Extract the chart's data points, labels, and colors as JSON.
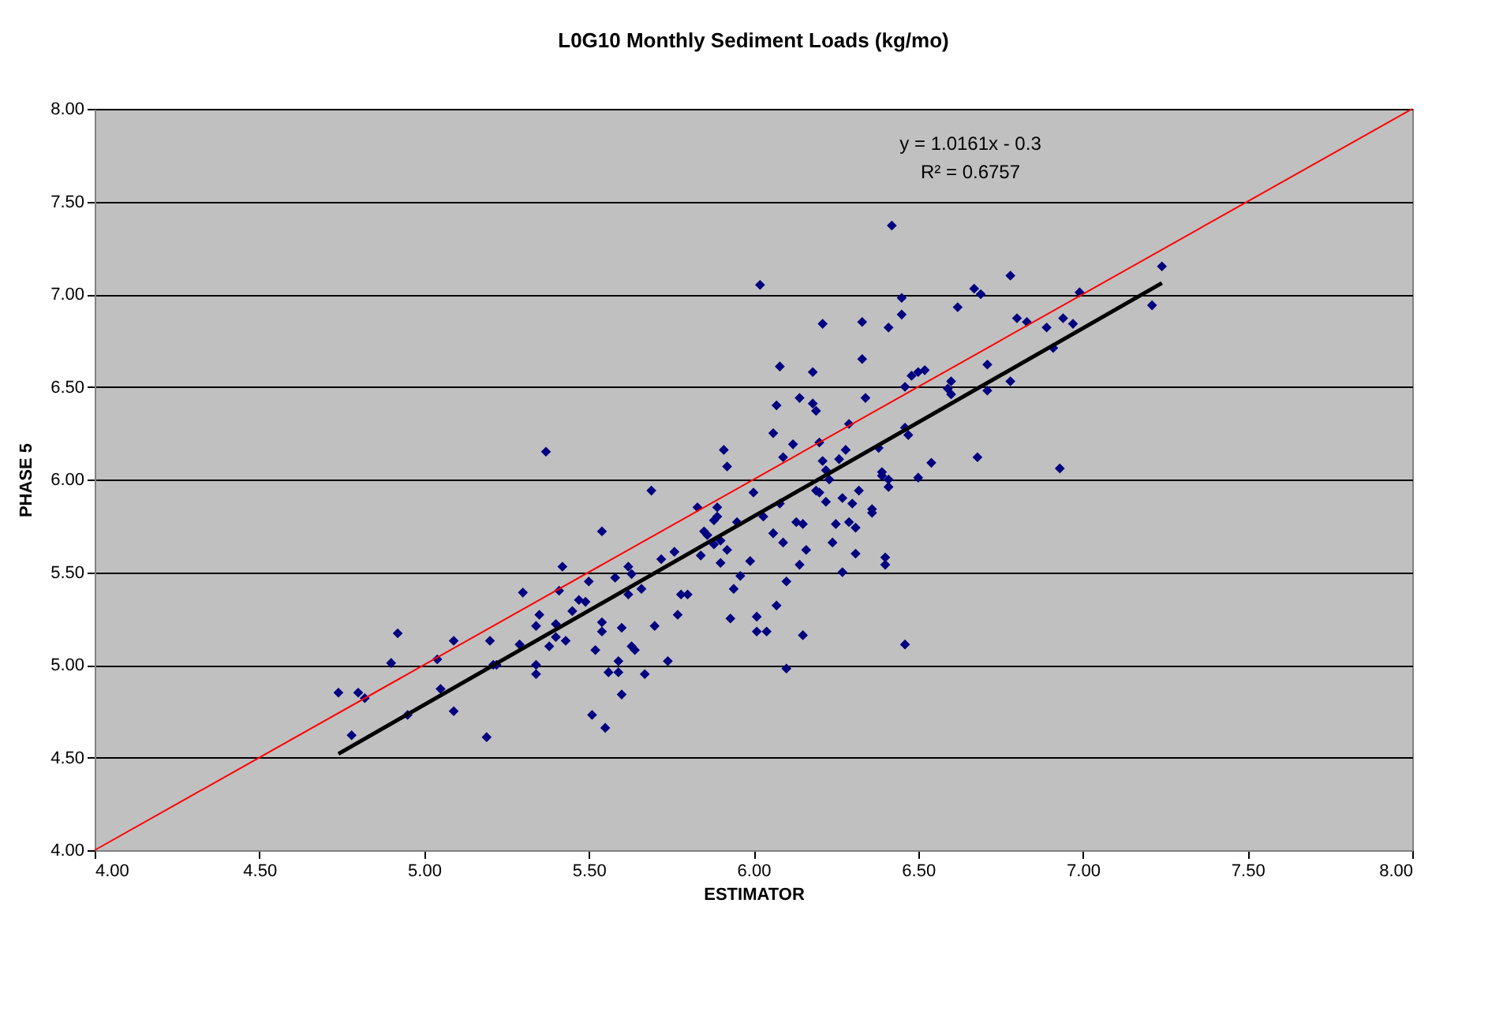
{
  "chart_data": {
    "type": "scatter",
    "title": "L0G10 Monthly Sediment Loads (kg/mo)",
    "xlabel": "ESTIMATOR",
    "ylabel": "PHASE 5",
    "xlim": [
      4,
      8
    ],
    "ylim": [
      4,
      8
    ],
    "xticks": [
      {
        "value": 4,
        "label": "4.00"
      },
      {
        "value": 4.5,
        "label": "4.50"
      },
      {
        "value": 5,
        "label": "5.00"
      },
      {
        "value": 5.5,
        "label": "5.50"
      },
      {
        "value": 6,
        "label": "6.00"
      },
      {
        "value": 6.5,
        "label": "6.50"
      },
      {
        "value": 7,
        "label": "7.00"
      },
      {
        "value": 7.5,
        "label": "7.50"
      },
      {
        "value": 8,
        "label": "8.00"
      }
    ],
    "yticks": [
      {
        "value": 4,
        "label": "4.00"
      },
      {
        "value": 4.5,
        "label": "4.50"
      },
      {
        "value": 5,
        "label": "5.00"
      },
      {
        "value": 5.5,
        "label": "5.50"
      },
      {
        "value": 6,
        "label": "6.00"
      },
      {
        "value": 6.5,
        "label": "6.50"
      },
      {
        "value": 7,
        "label": "7.00"
      },
      {
        "value": 7.5,
        "label": "7.50"
      },
      {
        "value": 8,
        "label": "8.00"
      }
    ],
    "grid": "y",
    "annotations": [
      "y = 1.0161x - 0.3",
      "R² = 0.6757"
    ],
    "series": [
      {
        "color": "#000080",
        "marker": "diamond",
        "x": [
          4.74,
          4.78,
          4.8,
          4.82,
          4.9,
          4.92,
          4.95,
          5.04,
          5.05,
          5.09,
          5.09,
          5.19,
          5.2,
          5.21,
          5.22,
          5.29,
          5.3,
          5.34,
          5.34,
          5.34,
          5.35,
          5.37,
          5.38,
          5.4,
          5.4,
          5.41,
          5.42,
          5.43,
          5.45,
          5.47,
          5.49,
          5.5,
          5.51,
          5.52,
          5.54,
          5.54,
          5.54,
          5.55,
          5.56,
          5.58,
          5.59,
          5.59,
          5.6,
          5.6,
          5.62,
          5.62,
          5.63,
          5.63,
          5.64,
          5.66,
          5.67,
          5.69,
          5.7,
          5.72,
          5.74,
          5.76,
          5.77,
          5.78,
          5.8,
          5.83,
          5.84,
          5.85,
          5.86,
          5.88,
          5.88,
          5.89,
          5.89,
          5.9,
          5.9,
          5.91,
          5.92,
          5.92,
          5.93,
          5.94,
          5.95,
          5.96,
          5.99,
          6.0,
          6.01,
          6.01,
          6.02,
          6.03,
          6.04,
          6.06,
          6.06,
          6.07,
          6.07,
          6.08,
          6.08,
          6.09,
          6.09,
          6.1,
          6.1,
          6.12,
          6.13,
          6.14,
          6.14,
          6.15,
          6.15,
          6.16,
          6.18,
          6.18,
          6.19,
          6.19,
          6.2,
          6.2,
          6.21,
          6.21,
          6.22,
          6.22,
          6.23,
          6.24,
          6.25,
          6.26,
          6.27,
          6.27,
          6.28,
          6.29,
          6.29,
          6.3,
          6.31,
          6.31,
          6.32,
          6.33,
          6.33,
          6.34,
          6.36,
          6.36,
          6.38,
          6.39,
          6.39,
          6.4,
          6.4,
          6.41,
          6.41,
          6.41,
          6.42,
          6.45,
          6.45,
          6.46,
          6.46,
          6.47,
          6.46,
          6.48,
          6.5,
          6.5,
          6.52,
          6.54,
          6.59,
          6.6,
          6.6,
          6.62,
          6.67,
          6.68,
          6.69,
          6.71,
          6.71,
          6.78,
          6.78,
          6.8,
          6.83,
          6.89,
          6.91,
          6.93,
          6.94,
          6.97,
          6.99,
          7.21,
          7.24
        ],
        "values": [
          4.85,
          4.62,
          4.85,
          4.82,
          5.01,
          5.17,
          4.73,
          5.03,
          4.87,
          4.75,
          5.13,
          4.61,
          5.13,
          5.0,
          5.0,
          5.11,
          5.39,
          4.95,
          5.0,
          5.21,
          5.27,
          6.15,
          5.1,
          5.22,
          5.15,
          5.4,
          5.53,
          5.13,
          5.29,
          5.35,
          5.34,
          5.45,
          4.73,
          5.08,
          5.72,
          5.23,
          5.18,
          4.66,
          4.96,
          5.47,
          5.02,
          4.96,
          4.84,
          5.2,
          5.38,
          5.53,
          5.49,
          5.1,
          5.08,
          5.41,
          4.95,
          5.94,
          5.21,
          5.57,
          5.02,
          5.61,
          5.27,
          5.38,
          5.38,
          5.85,
          5.59,
          5.72,
          5.7,
          5.65,
          5.78,
          5.85,
          5.8,
          5.67,
          5.55,
          6.16,
          6.07,
          5.62,
          5.25,
          5.41,
          5.77,
          5.48,
          5.56,
          5.93,
          5.26,
          5.18,
          7.05,
          5.8,
          5.18,
          5.71,
          6.25,
          6.4,
          5.32,
          6.61,
          5.87,
          6.12,
          5.66,
          4.98,
          5.45,
          6.19,
          5.77,
          5.54,
          6.44,
          5.76,
          5.16,
          5.62,
          6.41,
          6.58,
          5.94,
          6.37,
          6.2,
          5.93,
          6.84,
          6.1,
          6.05,
          5.88,
          6.0,
          5.66,
          5.76,
          6.11,
          5.9,
          5.5,
          6.16,
          5.77,
          6.3,
          5.87,
          5.74,
          5.6,
          5.94,
          6.85,
          6.65,
          6.44,
          5.84,
          5.82,
          6.17,
          6.04,
          6.02,
          5.54,
          5.58,
          6.0,
          5.96,
          6.82,
          7.37,
          6.89,
          6.98,
          6.5,
          6.28,
          6.24,
          5.11,
          6.56,
          6.58,
          6.01,
          6.59,
          6.09,
          6.49,
          6.46,
          6.53,
          6.93,
          7.03,
          6.12,
          7.0,
          6.62,
          6.48,
          7.1,
          6.53,
          6.87,
          6.85,
          6.82,
          6.71,
          6.06,
          6.87,
          6.84,
          7.01,
          6.94,
          7.15
        ]
      },
      {
        "type": "line",
        "marker": "none",
        "color": "#ff0000",
        "x": [
          4,
          8
        ],
        "values": [
          4,
          8
        ]
      },
      {
        "type": "line",
        "marker": "none",
        "color": "#000000",
        "x": [
          4.74,
          7.24
        ],
        "values": [
          4.52,
          7.06
        ]
      }
    ]
  }
}
